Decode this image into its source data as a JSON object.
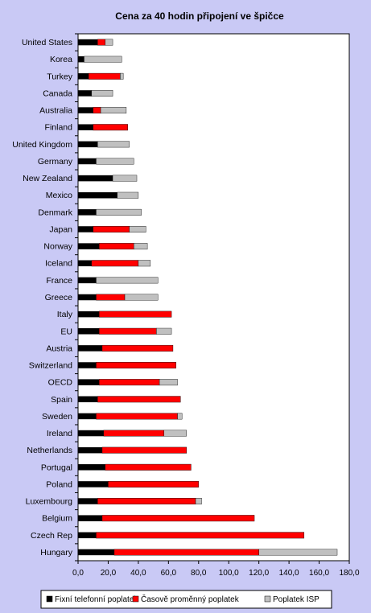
{
  "chart_data": {
    "type": "bar",
    "orientation": "horizontal",
    "stacked": true,
    "title": "Cena za 40 hodin připojení ve špičce",
    "categories": [
      "United States",
      "Korea",
      "Turkey",
      "Canada",
      "Australia",
      "Finland",
      "United Kingdom",
      "Germany",
      "New Zealand",
      "Mexico",
      "Denmark",
      "Japan",
      "Norway",
      "Iceland",
      "France",
      "Greece",
      "Italy",
      "EU",
      "Austria",
      "Switzerland",
      "OECD",
      "Spain",
      "Sweden",
      "Ireland",
      "Netherlands",
      "Portugal",
      "Poland",
      "Luxembourg",
      "Belgium",
      "Czech Rep",
      "Hungary"
    ],
    "series": [
      {
        "name": "Fixní telefonní poplatek",
        "color": "#000000",
        "values": [
          13,
          4,
          7,
          9,
          10,
          10,
          13,
          12,
          23,
          26,
          12,
          10,
          14,
          9,
          12,
          12,
          14,
          14,
          16,
          12,
          14,
          13,
          12,
          17,
          16,
          18,
          20,
          13,
          16,
          12,
          24
        ]
      },
      {
        "name": "Časově proměnný poplatek",
        "color": "#FF0000",
        "values": [
          5,
          0,
          21,
          0,
          5,
          23,
          0,
          0,
          0,
          0,
          0,
          24,
          23,
          31,
          0,
          19,
          48,
          38,
          47,
          53,
          40,
          55,
          54,
          40,
          56,
          57,
          60,
          65,
          101,
          138,
          96
        ]
      },
      {
        "name": "Poplatek ISP",
        "color": "#C0C0C0",
        "values": [
          5,
          25,
          2,
          14,
          17,
          0,
          21,
          25,
          16,
          14,
          30,
          11,
          9,
          8,
          41,
          22,
          0,
          10,
          0,
          0,
          12,
          0,
          3,
          15,
          0,
          0,
          0,
          4,
          0,
          0,
          52
        ]
      }
    ],
    "x_ticks": [
      "0,0",
      "20,0",
      "40,0",
      "60,0",
      "80,0",
      "100,0",
      "120,0",
      "140,0",
      "160,0",
      "180,0"
    ],
    "xlim": [
      0,
      180
    ],
    "grid": false,
    "legend_position": "bottom"
  }
}
